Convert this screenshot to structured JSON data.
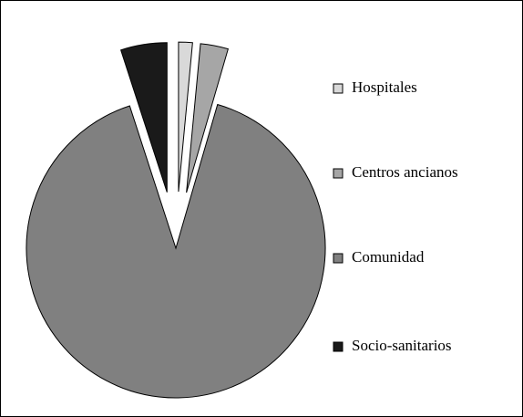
{
  "chart_data": {
    "type": "pie",
    "categories": [
      "Hospitales",
      "Centros ancianos",
      "Comunidad",
      "Socio-sanitarios"
    ],
    "values": [
      1.5,
      3,
      90.5,
      5
    ],
    "colors": [
      "#d9d9d9",
      "#a6a6a6",
      "#808080",
      "#1a1a1a"
    ],
    "legend": "right"
  }
}
